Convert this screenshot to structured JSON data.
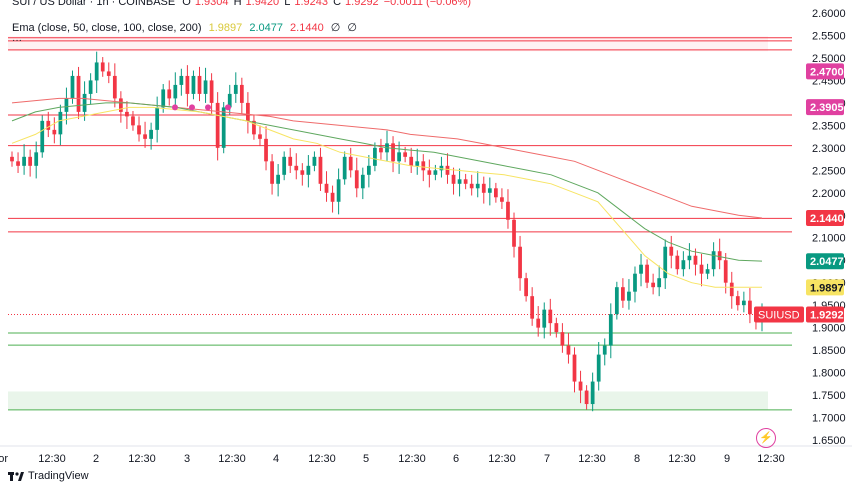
{
  "header": {
    "symbol": "SUI / US Dollar · 1h · COINBASE",
    "ohlc": {
      "o_label": "O",
      "o": "1.9304",
      "h_label": "H",
      "h": "1.9420",
      "l_label": "L",
      "l": "1.9243",
      "c_label": "C",
      "c": "1.9292",
      "change": "−0.0011 (−0.06%)"
    },
    "ema_name": "Ema (close, 50, close, 100, close, 200)",
    "ema_values": [
      "1.9897",
      "2.0477",
      "2.1440",
      "∅",
      "∅"
    ],
    "more": "···"
  },
  "footer": {
    "brand": "TradingView"
  },
  "colors": {
    "up": "#089981",
    "down": "#f23645",
    "ema50": "#f7e463",
    "ema100": "#5fa85f",
    "ema200": "#ef6b6b",
    "level_red": "#f23645",
    "level_green": "#4caf50"
  },
  "chart_data": {
    "type": "candlestick",
    "y_ticks": [
      "2.6000",
      "2.5500",
      "2.5000",
      "2.4500",
      "2.4000",
      "2.3500",
      "2.3000",
      "2.2500",
      "2.2000",
      "2.1500",
      "2.1000",
      "2.0500",
      "2.0000",
      "1.9500",
      "1.9000",
      "1.8500",
      "1.8000",
      "1.7500",
      "1.7000",
      "1.6500"
    ],
    "ylim": [
      1.63,
      2.62
    ],
    "x_ticks": [
      "or",
      "12:30",
      "2",
      "12:30",
      "3",
      "12:30",
      "4",
      "12:30",
      "5",
      "12:30",
      "6",
      "12:30",
      "7",
      "12:30",
      "8",
      "12:30",
      "9",
      "12:30"
    ],
    "price_labels": [
      {
        "value": 2.47,
        "text": "2.4700",
        "color": "#e040a0"
      },
      {
        "value": 2.3905,
        "text": "2.3905",
        "color": "#e040a0"
      },
      {
        "value": 2.144,
        "text": "2.1440",
        "color": "#f23645"
      },
      {
        "value": 2.0477,
        "text": "2.0477",
        "color": "#089981"
      },
      {
        "value": 1.9897,
        "text": "1.9897",
        "color": "#f7e463",
        "dark": true
      },
      {
        "value": 1.9292,
        "text": "1.9292",
        "tag": "SUIUSD",
        "color": "#f23645"
      }
    ],
    "horizontal_lines": [
      {
        "value": 2.545,
        "color": "#f23645"
      },
      {
        "value": 2.538,
        "color": "#f23645"
      },
      {
        "value": 2.518,
        "color": "#f23645"
      },
      {
        "value": 2.373,
        "color": "#f23645"
      },
      {
        "value": 2.305,
        "color": "#f23645"
      },
      {
        "value": 2.143,
        "color": "#f23645"
      },
      {
        "value": 2.113,
        "color": "#f23645"
      },
      {
        "value": 1.888,
        "color": "#4caf50"
      },
      {
        "value": 1.861,
        "color": "#4caf50"
      },
      {
        "value": 1.717,
        "color": "#4caf50"
      }
    ],
    "zones": [
      {
        "from": 2.515,
        "to": 2.548,
        "color": "rgba(242,54,69,0.07)"
      },
      {
        "from": 1.718,
        "to": 1.758,
        "color": "rgba(76,175,80,0.12)"
      }
    ],
    "closes": [
      2.27,
      2.26,
      2.28,
      2.26,
      2.29,
      2.36,
      2.34,
      2.33,
      2.38,
      2.41,
      2.46,
      2.38,
      2.42,
      2.45,
      2.49,
      2.47,
      2.46,
      2.41,
      2.38,
      2.37,
      2.35,
      2.33,
      2.32,
      2.34,
      2.39,
      2.43,
      2.41,
      2.44,
      2.46,
      2.42,
      2.46,
      2.42,
      2.45,
      2.4,
      2.3,
      2.39,
      2.42,
      2.44,
      2.4,
      2.36,
      2.33,
      2.32,
      2.27,
      2.22,
      2.24,
      2.28,
      2.26,
      2.25,
      2.24,
      2.26,
      2.28,
      2.22,
      2.2,
      2.18,
      2.23,
      2.28,
      2.25,
      2.21,
      2.24,
      2.26,
      2.3,
      2.29,
      2.31,
      2.27,
      2.29,
      2.28,
      2.26,
      2.27,
      2.25,
      2.24,
      2.25,
      2.26,
      2.24,
      2.22,
      2.23,
      2.22,
      2.21,
      2.22,
      2.2,
      2.21,
      2.19,
      2.18,
      2.14,
      2.08,
      2.01,
      1.97,
      1.92,
      1.9,
      1.94,
      1.91,
      1.89,
      1.86,
      1.84,
      1.78,
      1.76,
      1.73,
      1.78,
      1.84,
      1.86,
      1.93,
      1.99,
      1.96,
      1.98,
      2.02,
      2.04,
      2.0,
      1.99,
      2.01,
      2.08,
      2.06,
      2.03,
      2.05,
      2.06,
      2.04,
      2.02,
      2.03,
      2.07,
      2.05,
      2.0,
      1.97,
      1.95,
      1.96,
      1.93,
      1.92,
      1.93
    ],
    "ema50": [
      2.31,
      2.33,
      2.36,
      2.37,
      2.38,
      2.39,
      2.39,
      2.385,
      2.38,
      2.37,
      2.36,
      2.34,
      2.32,
      2.31,
      2.29,
      2.28,
      2.27,
      2.26,
      2.255,
      2.25,
      2.245,
      2.24,
      2.23,
      2.22,
      2.2,
      2.18,
      2.12,
      2.06,
      2.02,
      2.0,
      1.99,
      1.99,
      1.99
    ],
    "ema100": [
      2.36,
      2.38,
      2.39,
      2.395,
      2.4,
      2.4,
      2.395,
      2.39,
      2.38,
      2.37,
      2.36,
      2.35,
      2.34,
      2.33,
      2.32,
      2.31,
      2.3,
      2.295,
      2.29,
      2.28,
      2.27,
      2.26,
      2.25,
      2.24,
      2.22,
      2.2,
      2.16,
      2.12,
      2.09,
      2.07,
      2.06,
      2.05,
      2.048
    ],
    "ema200": [
      2.4,
      2.405,
      2.41,
      2.41,
      2.405,
      2.4,
      2.395,
      2.39,
      2.385,
      2.38,
      2.375,
      2.37,
      2.36,
      2.355,
      2.35,
      2.345,
      2.34,
      2.33,
      2.325,
      2.32,
      2.31,
      2.3,
      2.29,
      2.28,
      2.27,
      2.25,
      2.23,
      2.21,
      2.19,
      2.17,
      2.16,
      2.15,
      2.144
    ],
    "markers": [
      2.39,
      2.39,
      2.39,
      2.39
    ]
  }
}
